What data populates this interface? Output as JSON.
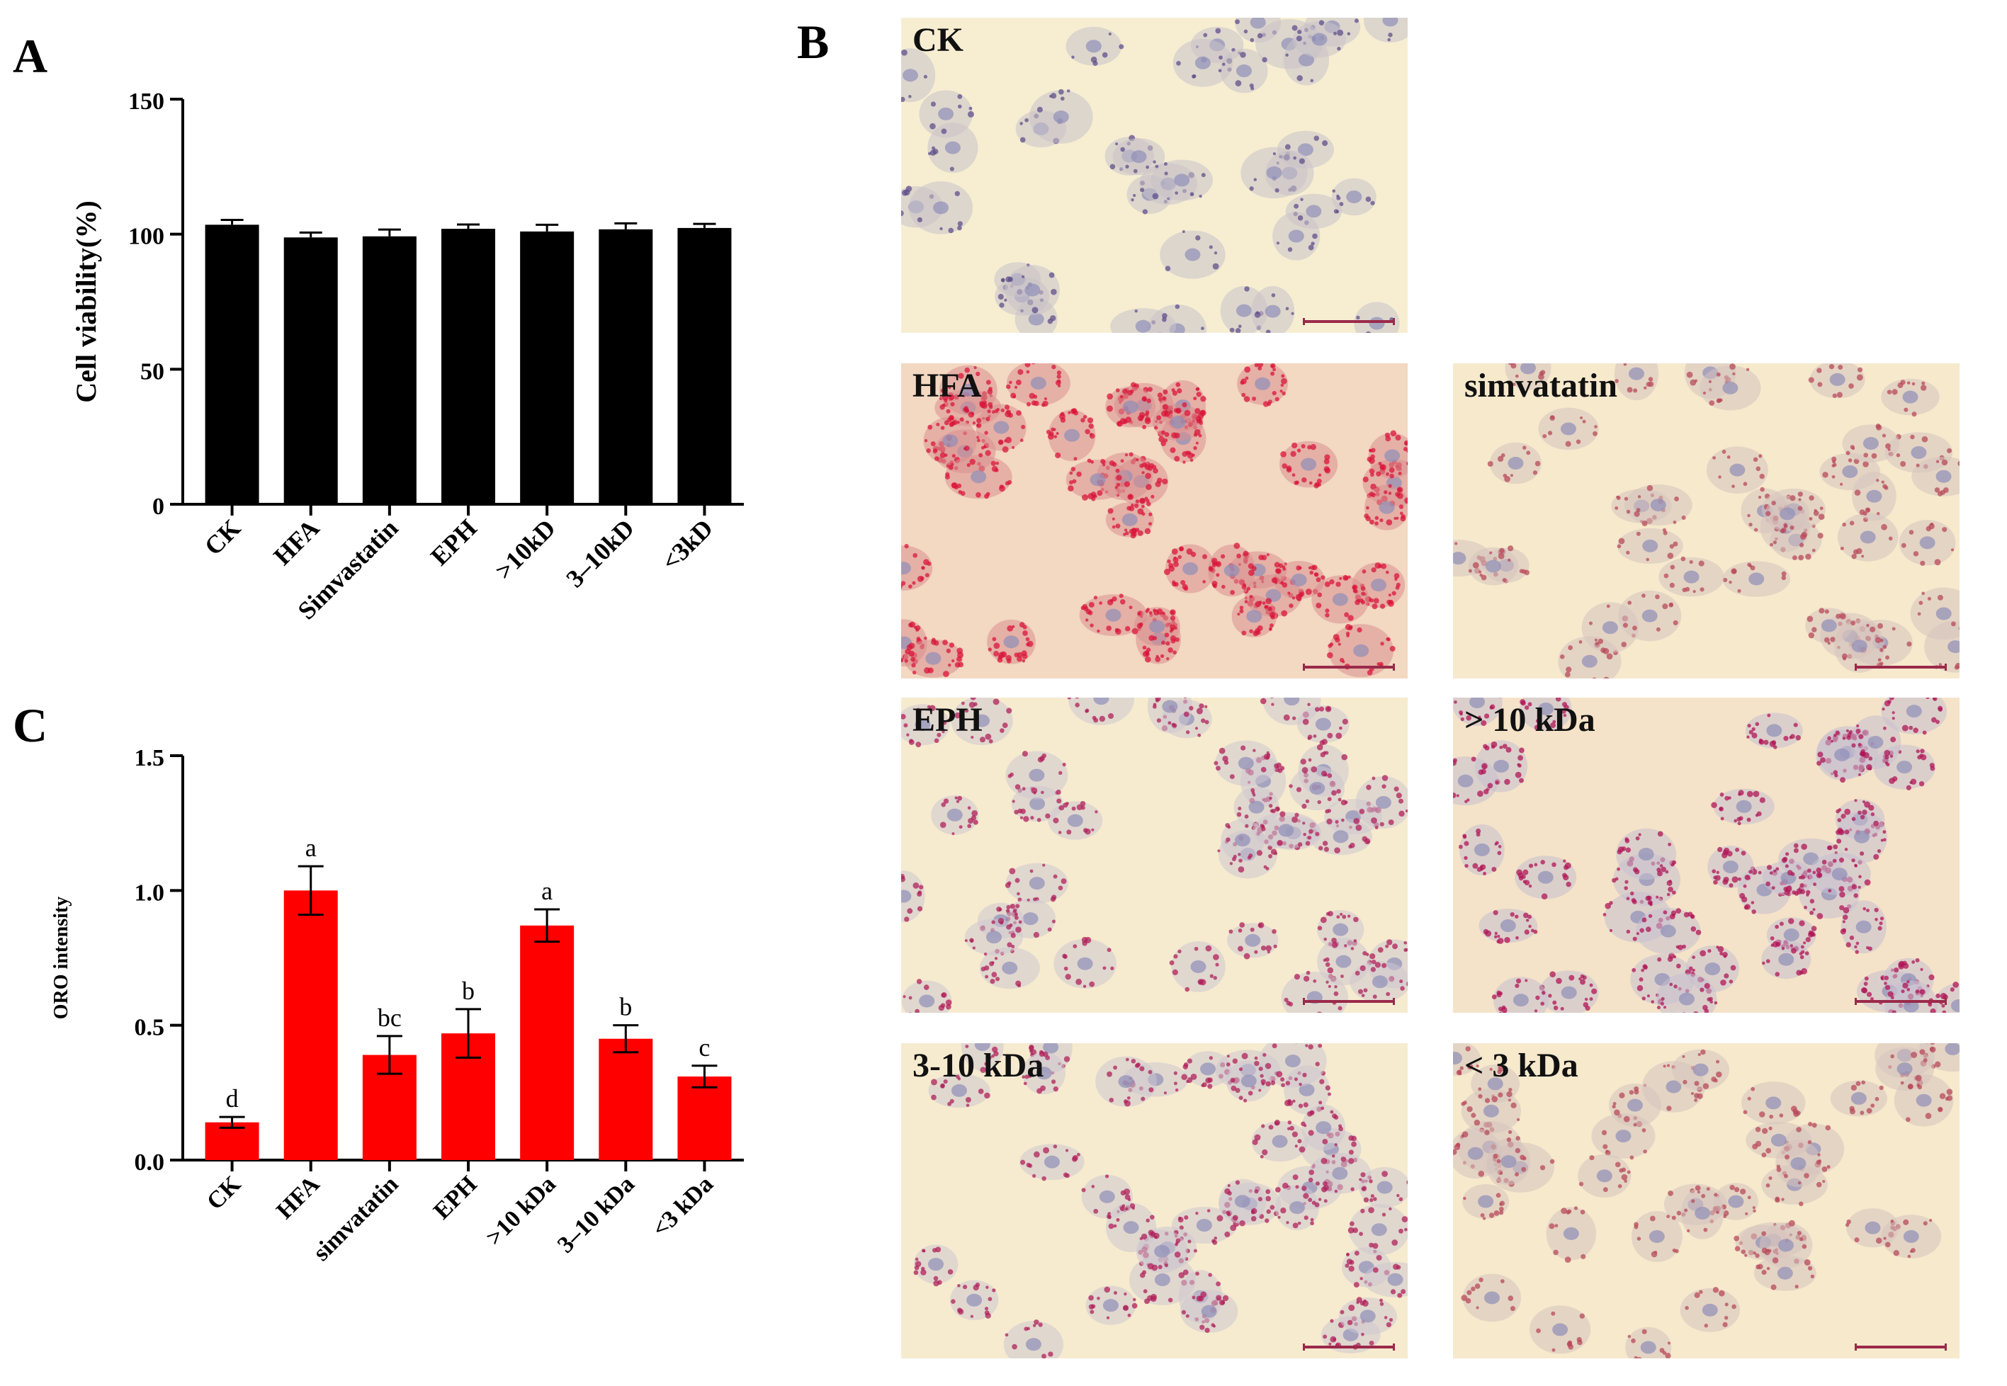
{
  "panel_letters": {
    "a": "A",
    "b": "B",
    "c": "C"
  },
  "colors": {
    "panel_a_bar": "#000000",
    "panel_c_bar": "#ff0000",
    "background": "#ffffff"
  },
  "chart_data": [
    {
      "panel": "A",
      "type": "bar",
      "ylabel": "Cell viability(%)",
      "xlabel": "",
      "ylim": [
        0,
        150
      ],
      "yticks": [
        "0",
        "50",
        "100",
        "150"
      ],
      "categories": [
        "CK",
        "HFA",
        "Simvastatin",
        "EPH",
        ">10kD",
        "3–10kD",
        "<3kD"
      ],
      "values": [
        103.5,
        98.8,
        99.2,
        102.0,
        101.0,
        101.8,
        102.3
      ],
      "errors": [
        1.8,
        1.8,
        2.5,
        1.6,
        2.5,
        2.2,
        1.5
      ],
      "color": "#000000"
    },
    {
      "panel": "C",
      "type": "bar",
      "ylabel": "ORO intensity",
      "xlabel": "",
      "ylim": [
        0,
        1.5
      ],
      "yticks": [
        "0.0",
        "0.5",
        "1.0",
        "1.5"
      ],
      "categories": [
        "CK",
        "HFA",
        "simvatatin",
        "EPH",
        ">10 kDa",
        "3–10 kDa",
        "<3 kDa"
      ],
      "values": [
        0.14,
        1.0,
        0.39,
        0.47,
        0.87,
        0.45,
        0.31
      ],
      "errors": [
        0.02,
        0.09,
        0.07,
        0.09,
        0.06,
        0.05,
        0.04
      ],
      "significance_labels": [
        "d",
        "a",
        "bc",
        "b",
        "a",
        "b",
        "c"
      ],
      "color": "#ff0000"
    }
  ],
  "micrographs": [
    {
      "label": "CK",
      "stain": "light",
      "col": 0,
      "row": 0
    },
    {
      "label": "HFA",
      "stain": "heavy",
      "col": 0,
      "row": 1
    },
    {
      "label": "simvatatin",
      "stain": "light-mid",
      "col": 1,
      "row": 1
    },
    {
      "label": "EPH",
      "stain": "mid",
      "col": 0,
      "row": 2
    },
    {
      "label": "> 10 kDa",
      "stain": "mid-heavy",
      "col": 1,
      "row": 2
    },
    {
      "label": "3-10 kDa",
      "stain": "mid",
      "col": 0,
      "row": 3
    },
    {
      "label": "< 3 kDa",
      "stain": "light-mid",
      "col": 1,
      "row": 3
    }
  ]
}
